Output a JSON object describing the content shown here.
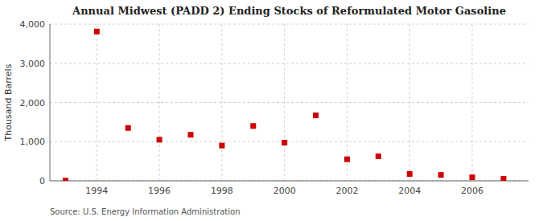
{
  "chart_data": {
    "type": "scatter",
    "title": "Annual Midwest (PADD 2) Ending Stocks of Reformulated Motor Gasoline",
    "y_label": "Thousand Barrels",
    "annotations": [
      "Source: U.S. Energy Information Administration"
    ],
    "x": [
      1993,
      1994,
      1995,
      1996,
      1997,
      1998,
      1999,
      2000,
      2001,
      2002,
      2003,
      2004,
      2005,
      2006,
      2007
    ],
    "values": [
      5,
      3810,
      1350,
      1050,
      1175,
      900,
      1400,
      975,
      1670,
      550,
      625,
      175,
      150,
      90,
      50
    ],
    "color": "#cc0000",
    "marker": "square",
    "grid": true,
    "xlim": [
      1992.5,
      2007.8
    ],
    "xticks": [
      1994,
      1996,
      1998,
      2000,
      2002,
      2004,
      2006
    ],
    "ylim": [
      0,
      4000
    ],
    "yticks": [
      0,
      {
        "value": 1000,
        "label": "1,000"
      },
      {
        "value": 2000,
        "label": "2,000"
      },
      {
        "value": 3000,
        "label": "3,000"
      },
      {
        "value": 4000,
        "label": "4,000"
      }
    ]
  }
}
